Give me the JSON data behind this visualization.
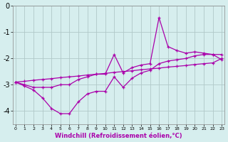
{
  "xlabel": "Windchill (Refroidissement éolien,°C)",
  "x": [
    0,
    1,
    2,
    3,
    4,
    5,
    6,
    7,
    8,
    9,
    10,
    11,
    12,
    13,
    14,
    15,
    16,
    17,
    18,
    19,
    20,
    21,
    22,
    23
  ],
  "line_straight": [
    -2.9,
    -2.87,
    -2.83,
    -2.8,
    -2.77,
    -2.73,
    -2.7,
    -2.67,
    -2.63,
    -2.6,
    -2.57,
    -2.53,
    -2.5,
    -2.47,
    -2.43,
    -2.4,
    -2.37,
    -2.33,
    -2.3,
    -2.27,
    -2.23,
    -2.2,
    -2.17,
    -2.0
  ],
  "line_mid": [
    -2.9,
    -3.0,
    -3.1,
    -3.1,
    -3.1,
    -3.0,
    -3.0,
    -2.8,
    -2.7,
    -2.6,
    -2.6,
    -1.85,
    -2.55,
    -2.35,
    -2.25,
    -2.2,
    -0.45,
    -1.55,
    -1.7,
    -1.8,
    -1.75,
    -1.8,
    -1.85,
    -1.85
  ],
  "line_low": [
    -2.9,
    -3.05,
    -3.2,
    -3.5,
    -3.9,
    -4.1,
    -4.1,
    -3.65,
    -3.35,
    -3.25,
    -3.25,
    -2.7,
    -3.1,
    -2.75,
    -2.55,
    -2.45,
    -2.2,
    -2.1,
    -2.05,
    -2.0,
    -1.9,
    -1.85,
    -1.85,
    -2.05
  ],
  "line_color": "#aa00aa",
  "bg_color": "#d6eeee",
  "grid_color": "#b0c8c8",
  "ylim": [
    -4.5,
    0.0
  ],
  "yticks": [
    0,
    -1,
    -2,
    -3,
    -4
  ],
  "xlim": [
    -0.3,
    23.3
  ]
}
